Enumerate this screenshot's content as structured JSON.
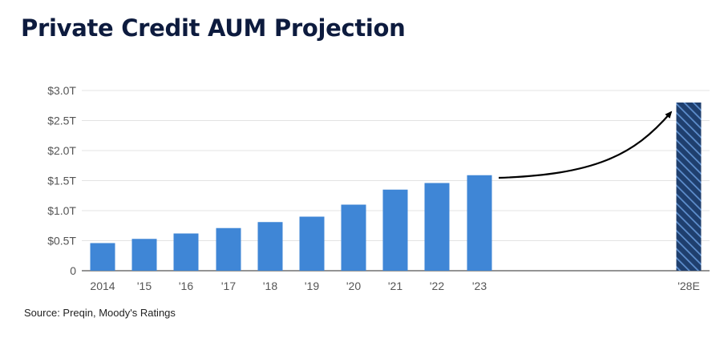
{
  "title": "Private Credit AUM Projection",
  "source": "Source: Preqin, Moody's Ratings",
  "chart_data": {
    "type": "bar",
    "title": "Private Credit AUM Projection",
    "xlabel": "",
    "ylabel": "",
    "categories": [
      "2014",
      "'15",
      "'16",
      "'17",
      "'18",
      "'19",
      "'20",
      "'21",
      "'22",
      "'23",
      "'28E"
    ],
    "values": [
      0.46,
      0.53,
      0.62,
      0.71,
      0.81,
      0.9,
      1.1,
      1.35,
      1.46,
      1.59,
      2.8
    ],
    "ylim": [
      0,
      3.0
    ],
    "yticks": [
      {
        "value": 0,
        "label": "0"
      },
      {
        "value": 0.5,
        "label": "$0.5T"
      },
      {
        "value": 1.0,
        "label": "$1.0T"
      },
      {
        "value": 1.5,
        "label": "$1.5T"
      },
      {
        "value": 2.0,
        "label": "$2.0T"
      },
      {
        "value": 2.5,
        "label": "$2.5T"
      },
      {
        "value": 3.0,
        "label": "$3.0T"
      }
    ],
    "grid": true,
    "projected_category": "'28E",
    "annotation": "curved arrow from '23 bar to '28E bar",
    "colors": {
      "bar": "#3f86d6",
      "projected_fill": "#1f3f6e",
      "projected_hatch": "#5e8fce",
      "grid": "#e3e3e3",
      "axis": "#555555",
      "arrow": "#000000"
    }
  }
}
